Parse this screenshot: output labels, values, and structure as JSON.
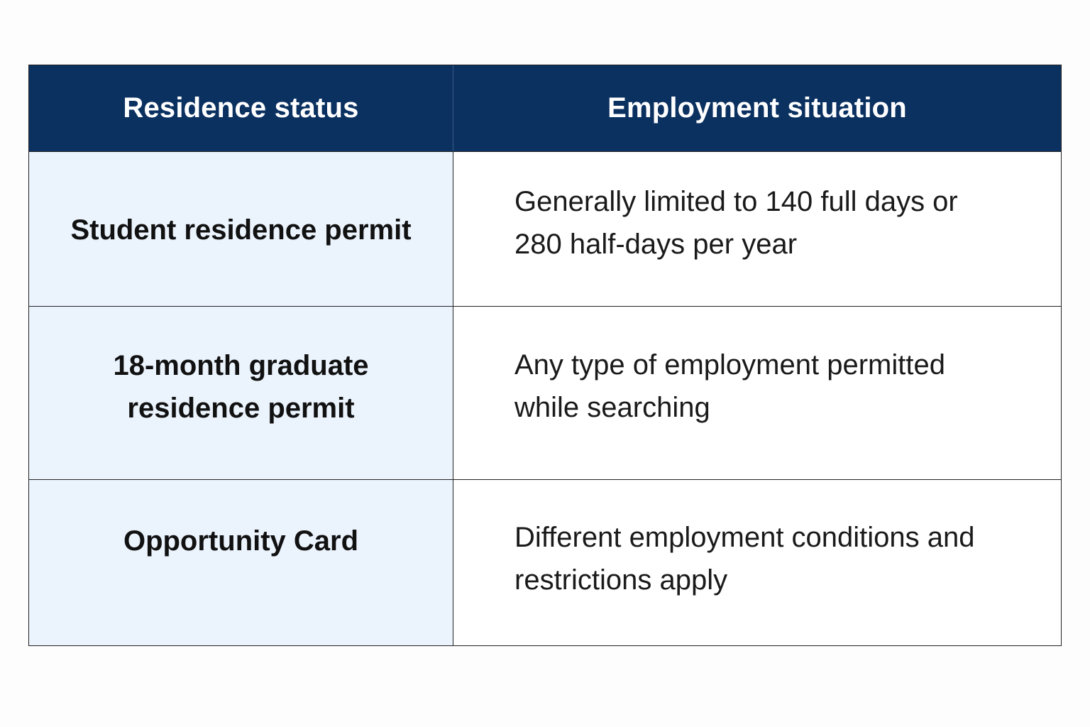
{
  "table": {
    "headers": [
      "Residence status",
      "Employment situation"
    ],
    "rows": [
      {
        "status": "Student residence permit",
        "employment": "Generally limited to 140 full days or 280 half-days per year"
      },
      {
        "status": "18-month graduate residence permit",
        "employment": "Any type of employment permitted while searching"
      },
      {
        "status": "Opportunity Card",
        "employment": "Different employment conditions and restrictions apply"
      }
    ]
  },
  "colors": {
    "header_background": "#0b3161",
    "header_text": "#ffffff",
    "left_column_background": "#ebf3fd",
    "right_column_background": "#ffffff",
    "border": "#222222"
  }
}
